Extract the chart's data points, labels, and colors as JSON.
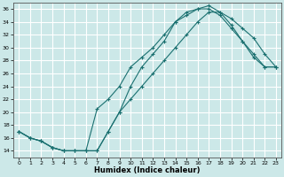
{
  "xlabel": "Humidex (Indice chaleur)",
  "bg_color": "#cce8e8",
  "grid_color": "#ffffff",
  "line_color": "#1a7070",
  "xlim": [
    -0.5,
    23.5
  ],
  "ylim": [
    13,
    37
  ],
  "yticks": [
    14,
    16,
    18,
    20,
    22,
    24,
    26,
    28,
    30,
    32,
    34,
    36
  ],
  "xticks": [
    0,
    1,
    2,
    3,
    4,
    5,
    6,
    7,
    8,
    9,
    10,
    11,
    12,
    13,
    14,
    15,
    16,
    17,
    18,
    19,
    20,
    21,
    22,
    23
  ],
  "line1_x": [
    0,
    1,
    2,
    3,
    4,
    5,
    6,
    7,
    8,
    9,
    10,
    11,
    12,
    13,
    14,
    15,
    16,
    17,
    18,
    19,
    20,
    21,
    22,
    23
  ],
  "line1_y": [
    17,
    16,
    15.5,
    14.5,
    14,
    14,
    14,
    14,
    17,
    20,
    24,
    27,
    29,
    31,
    34,
    35,
    36,
    36.5,
    35.5,
    33.5,
    31,
    28.5,
    27,
    27
  ],
  "line2_x": [
    0,
    1,
    2,
    3,
    4,
    5,
    6,
    7,
    8,
    9,
    10,
    11,
    12,
    13,
    14,
    15,
    16,
    17,
    18,
    19,
    20,
    21,
    22,
    23
  ],
  "line2_y": [
    17,
    16,
    15.5,
    14.5,
    14,
    14,
    14,
    20.5,
    22,
    24,
    27,
    28.5,
    30,
    32,
    34,
    35.5,
    36,
    36,
    35,
    33,
    31,
    29,
    27,
    27
  ],
  "line3_x": [
    0,
    1,
    2,
    3,
    4,
    5,
    6,
    7,
    8,
    9,
    10,
    11,
    12,
    13,
    14,
    15,
    16,
    17,
    18,
    19,
    20,
    21,
    22,
    23
  ],
  "line3_y": [
    17,
    16,
    15.5,
    14.5,
    14,
    14,
    14,
    14,
    17,
    20,
    22,
    24,
    26,
    28,
    30,
    32,
    34,
    35.5,
    35.5,
    34.5,
    33,
    31.5,
    29,
    27
  ]
}
